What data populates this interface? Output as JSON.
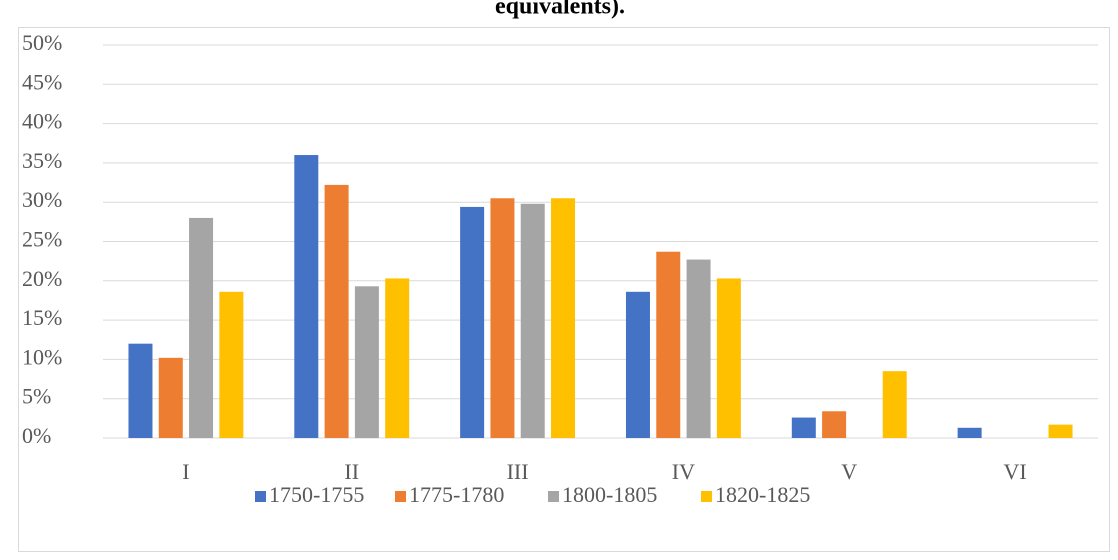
{
  "chart_data": {
    "type": "bar",
    "title": "equivalents).",
    "categories": [
      "I",
      "II",
      "III",
      "IV",
      "V",
      "VI"
    ],
    "series": [
      {
        "name": "1750-1755",
        "color": "#4472c4",
        "values": [
          12,
          36,
          29.4,
          18.6,
          2.6,
          1.3
        ]
      },
      {
        "name": "1775-1780",
        "color": "#ed7d31",
        "values": [
          10.2,
          32.2,
          30.5,
          23.7,
          3.4,
          0
        ]
      },
      {
        "name": "1800-1805",
        "color": "#a5a5a5",
        "values": [
          28,
          19.3,
          29.8,
          22.7,
          0,
          0
        ]
      },
      {
        "name": "1820-1825",
        "color": "#ffc000",
        "values": [
          18.6,
          20.3,
          30.5,
          20.3,
          8.5,
          1.7
        ]
      }
    ],
    "ylim": [
      0,
      50
    ],
    "yticks": [
      {
        "value": 0,
        "label": "0%"
      },
      {
        "value": 5,
        "label": "5%"
      },
      {
        "value": 10,
        "label": "10%"
      },
      {
        "value": 15,
        "label": "15%"
      },
      {
        "value": 20,
        "label": "20%"
      },
      {
        "value": 25,
        "label": "25%"
      },
      {
        "value": 30,
        "label": "30%"
      },
      {
        "value": 35,
        "label": "35%"
      },
      {
        "value": 40,
        "label": "40%"
      },
      {
        "value": 45,
        "label": "45%"
      },
      {
        "value": 50,
        "label": "50%"
      }
    ],
    "grid": true,
    "legend": "bottom"
  }
}
